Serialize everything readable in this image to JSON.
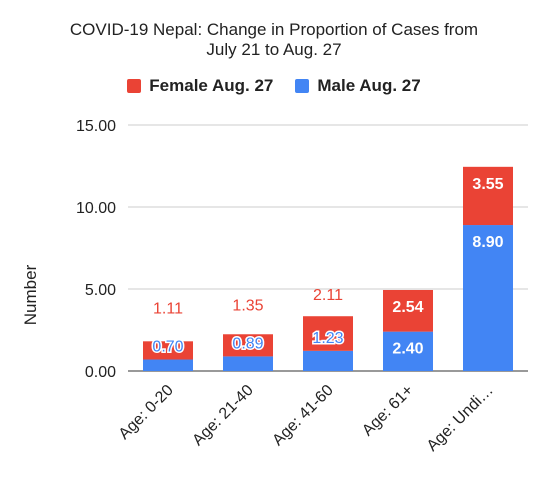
{
  "chart_data": {
    "type": "bar",
    "stacked": true,
    "title_lines": [
      "COVID-19 Nepal: Change in Proportion of Cases from",
      "July 21 to Aug. 27"
    ],
    "xlabel": "",
    "ylabel": "Number",
    "ylim": [
      0,
      15
    ],
    "yticks": [
      "0.00",
      "5.00",
      "10.00",
      "15.00"
    ],
    "grid": true,
    "legend_position": "top",
    "categories": [
      "Age: 0-20",
      "Age: 21-40",
      "Age: 41-60",
      "Age: 61+",
      "Age: Undi…"
    ],
    "series": [
      {
        "name": "Male Aug. 27",
        "color": "#4285f4",
        "values": [
          0.7,
          0.89,
          1.23,
          2.4,
          8.9
        ],
        "labels": [
          "0.70",
          "0.89",
          "1.23",
          "2.40",
          "8.90"
        ]
      },
      {
        "name": "Female Aug. 27",
        "color": "#ea4335",
        "values": [
          1.11,
          1.35,
          2.11,
          2.54,
          3.55
        ],
        "labels": [
          "1.11",
          "1.35",
          "2.11",
          "2.54",
          "3.55"
        ]
      }
    ]
  },
  "legend": [
    {
      "label": "Female Aug. 27",
      "color": "#ea4335"
    },
    {
      "label": "Male Aug. 27",
      "color": "#4285f4"
    }
  ]
}
